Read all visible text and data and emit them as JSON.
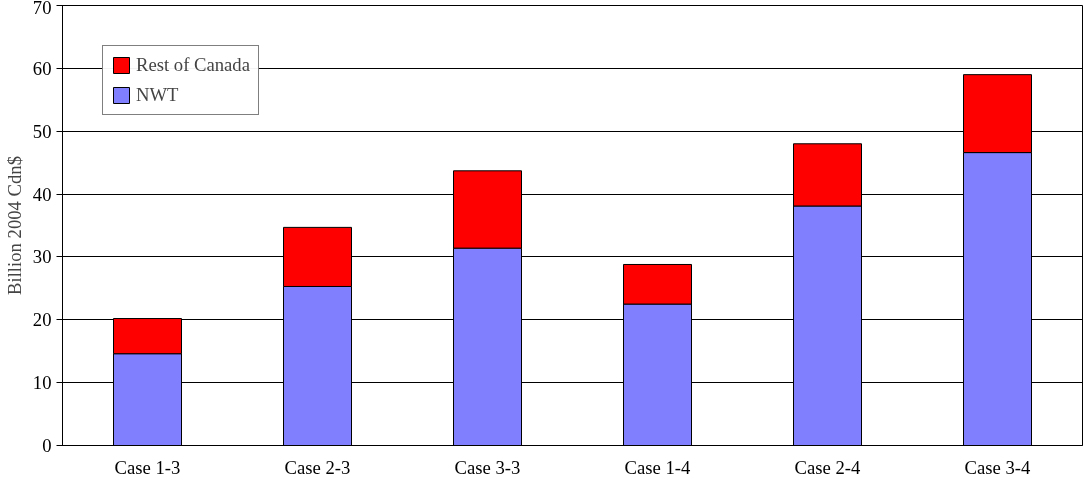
{
  "chart_data": {
    "type": "bar",
    "stacked": true,
    "ylabel": "Billion 2004 Cdn$",
    "categories": [
      "Case 1-3",
      "Case 2-3",
      "Case 3-3",
      "Case 1-4",
      "Case 2-4",
      "Case 3-4"
    ],
    "series": [
      {
        "name": "NWT",
        "color": "#8080ff",
        "values": [
          14.6,
          25.3,
          31.4,
          22.5,
          38.1,
          46.6
        ]
      },
      {
        "name": "Rest of Canada",
        "color": "#ff0000",
        "values": [
          5.6,
          9.4,
          12.3,
          6.3,
          9.9,
          12.4
        ]
      }
    ],
    "ylim": [
      0,
      70
    ],
    "yticks": [
      0,
      10,
      20,
      30,
      40,
      50,
      60,
      70
    ],
    "grid": "y",
    "legend": "top left"
  }
}
